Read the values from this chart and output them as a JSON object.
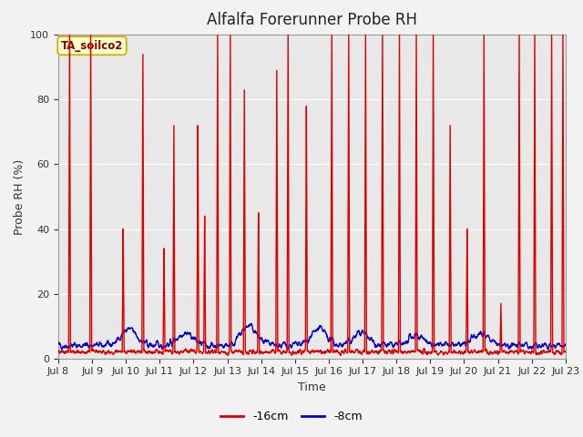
{
  "title": "Alfalfa Forerunner Probe RH",
  "xlabel": "Time",
  "ylabel": "Probe RH (%)",
  "ylim": [
    0,
    100
  ],
  "xlim": [
    0,
    360
  ],
  "x_tick_labels": [
    "Jul 8",
    "Jul 9",
    "Jul 10",
    "Jul 11",
    "Jul 12",
    "Jul 13",
    "Jul 14",
    "Jul 15",
    "Jul 16",
    "Jul 17",
    "Jul 18",
    "Jul 19",
    "Jul 20",
    "Jul 21",
    "Jul 22",
    "Jul 23"
  ],
  "plot_bg_color": "#e8e8e8",
  "fig_bg_color": "#f2f2f2",
  "legend_box_label": "TA_soilco2",
  "legend_box_bg": "#ffffcc",
  "legend_box_edge": "#ccaa00",
  "line_red_color": "#dd0000",
  "line_blue_color": "#0000cc",
  "line_width": 1.0,
  "title_fontsize": 12,
  "axis_label_fontsize": 9,
  "tick_fontsize": 8,
  "spike_positions": [
    8,
    23,
    46,
    60,
    75,
    82,
    99,
    104,
    113,
    122,
    132,
    142,
    155,
    163,
    176,
    194,
    206,
    218,
    230,
    242,
    254,
    266,
    278,
    290,
    302,
    314,
    327,
    338,
    350,
    358
  ],
  "spike_heights": [
    100,
    100,
    40,
    94,
    34,
    72,
    72,
    44,
    100,
    100,
    83,
    45,
    89,
    100,
    78,
    100,
    100,
    100,
    100,
    100,
    100,
    100,
    72,
    40,
    100,
    17,
    100,
    100,
    100,
    100
  ]
}
